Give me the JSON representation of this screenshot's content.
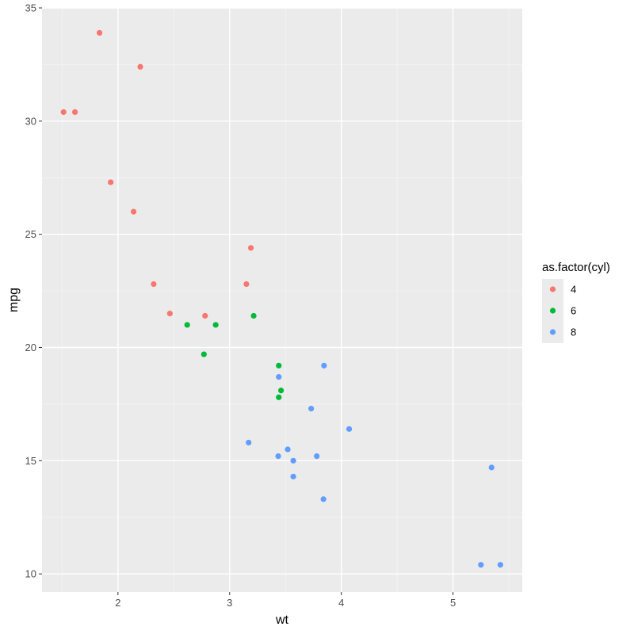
{
  "chart_data": {
    "type": "scatter",
    "title": "",
    "xlabel": "wt",
    "ylabel": "mpg",
    "xlim": [
      1.32,
      5.62
    ],
    "ylim": [
      9.2,
      35.0
    ],
    "x_ticks": [
      2,
      3,
      4,
      5
    ],
    "x_tick_labels": [
      "2",
      "3",
      "4",
      "5"
    ],
    "y_ticks": [
      10,
      15,
      20,
      25,
      30,
      35
    ],
    "y_tick_labels": [
      "10",
      "15",
      "20",
      "25",
      "30",
      "35"
    ],
    "grid": true,
    "background": "#ebebeb",
    "legend": {
      "title": "as.factor(cyl)",
      "placement": "right"
    },
    "series": [
      {
        "name": "4",
        "color": "#f8766d",
        "points": [
          [
            1.513,
            30.4
          ],
          [
            1.615,
            30.4
          ],
          [
            1.835,
            33.9
          ],
          [
            1.935,
            27.3
          ],
          [
            2.14,
            26.0
          ],
          [
            2.2,
            32.4
          ],
          [
            2.32,
            22.8
          ],
          [
            2.465,
            21.5
          ],
          [
            2.78,
            21.4
          ],
          [
            3.15,
            22.8
          ],
          [
            3.19,
            24.4
          ]
        ]
      },
      {
        "name": "6",
        "color": "#00ba38",
        "points": [
          [
            2.62,
            21.0
          ],
          [
            2.77,
            19.7
          ],
          [
            2.875,
            21.0
          ],
          [
            3.215,
            21.4
          ],
          [
            3.44,
            19.2
          ],
          [
            3.44,
            17.8
          ],
          [
            3.46,
            18.1
          ]
        ]
      },
      {
        "name": "8",
        "color": "#619cff",
        "points": [
          [
            3.17,
            15.8
          ],
          [
            3.435,
            15.2
          ],
          [
            3.44,
            18.7
          ],
          [
            3.52,
            15.5
          ],
          [
            3.57,
            14.3
          ],
          [
            3.57,
            15.0
          ],
          [
            3.73,
            17.3
          ],
          [
            3.78,
            15.2
          ],
          [
            3.84,
            13.3
          ],
          [
            3.845,
            19.2
          ],
          [
            4.07,
            16.4
          ],
          [
            5.25,
            10.4
          ],
          [
            5.345,
            14.7
          ],
          [
            5.424,
            10.4
          ]
        ]
      }
    ]
  }
}
